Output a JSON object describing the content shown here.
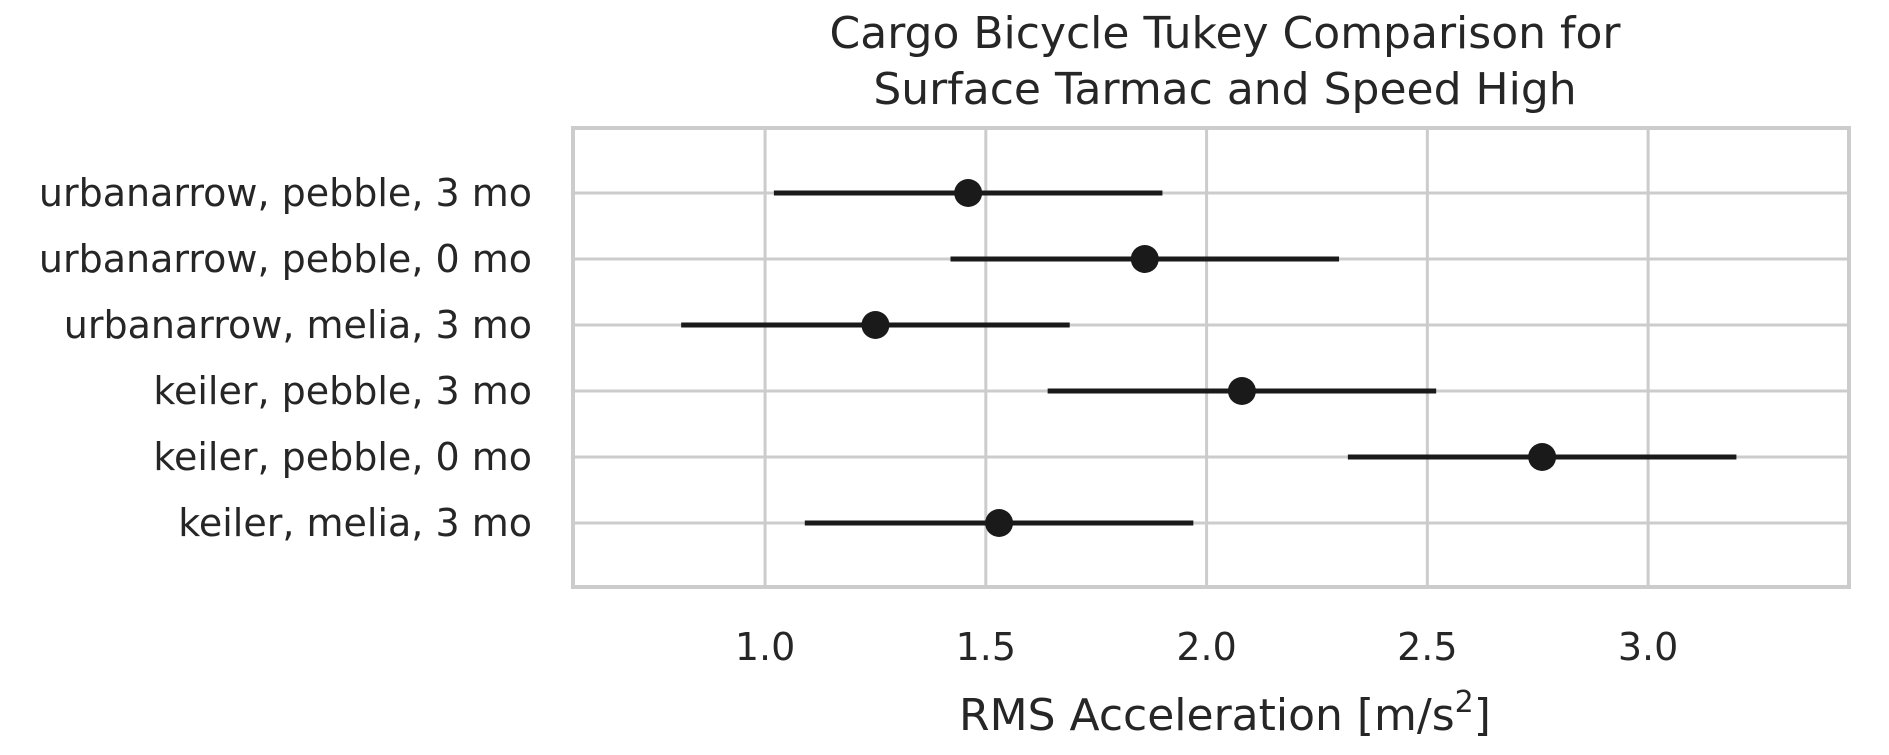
{
  "chart_data": {
    "type": "scatter",
    "title": [
      "Cargo Bicycle Tukey Comparison for",
      "Surface Tarmac and Speed High"
    ],
    "xlabel": "RMS Acceleration [m/s",
    "xlabel_sup": "2",
    "xlabel_suffix": "]",
    "ylabel": "",
    "xlim": [
      0.565,
      3.455
    ],
    "xticks": [
      1.0,
      1.5,
      2.0,
      2.5,
      3.0
    ],
    "xtick_labels": [
      "1.0",
      "1.5",
      "2.0",
      "2.5",
      "3.0"
    ],
    "grid": true,
    "categories": [
      "urbanarrow, pebble, 3 mo",
      "urbanarrow, pebble, 0 mo",
      "urbanarrow, melia, 3 mo",
      "keiler, pebble, 3 mo",
      "keiler, pebble, 0 mo",
      "keiler, melia, 3 mo"
    ],
    "means": [
      1.46,
      1.86,
      1.25,
      2.08,
      2.76,
      1.53
    ],
    "lower": [
      1.02,
      1.42,
      0.81,
      1.64,
      2.32,
      1.09
    ],
    "upper": [
      1.9,
      2.3,
      1.69,
      2.52,
      3.2,
      1.97
    ],
    "colors": {
      "marker": "#1a1a1a",
      "grid": "#cccccc"
    }
  }
}
